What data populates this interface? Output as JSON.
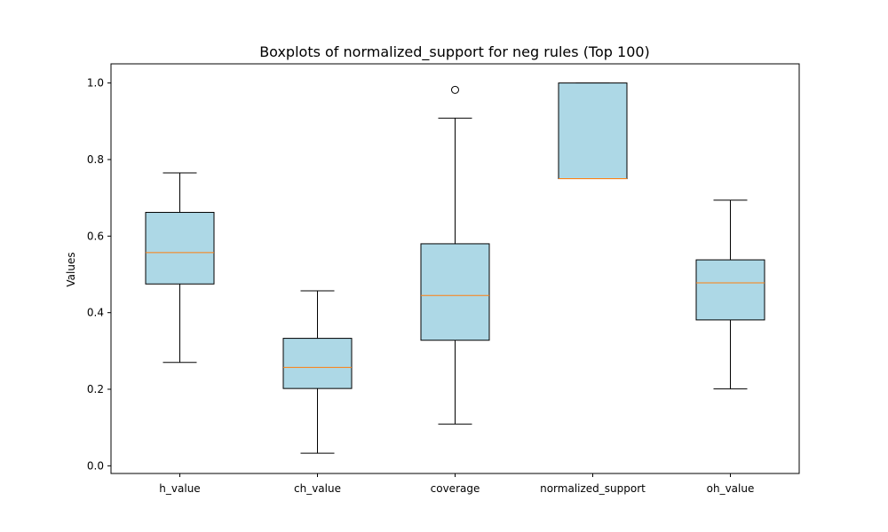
{
  "chart_data": {
    "type": "boxplot",
    "title": "Boxplots of normalized_support for neg rules (Top 100)",
    "xlabel": "",
    "ylabel": "Values",
    "ylim": [
      -0.02,
      1.05
    ],
    "yticks": [
      "0.0",
      "0.2",
      "0.4",
      "0.6",
      "0.8",
      "1.0"
    ],
    "grid": false,
    "colors": {
      "box_fill": "#add8e6",
      "box_edge": "#000000",
      "median": "#ff7f0e"
    },
    "boxes": [
      {
        "category": "h_value",
        "whisker_low": 0.27,
        "q1": 0.475,
        "median": 0.557,
        "q3": 0.662,
        "whisker_high": 0.765,
        "outliers": []
      },
      {
        "category": "ch_value",
        "whisker_low": 0.033,
        "q1": 0.202,
        "median": 0.257,
        "q3": 0.333,
        "whisker_high": 0.457,
        "outliers": []
      },
      {
        "category": "coverage",
        "whisker_low": 0.109,
        "q1": 0.328,
        "median": 0.445,
        "q3": 0.58,
        "whisker_high": 0.908,
        "outliers": [
          0.982
        ]
      },
      {
        "category": "normalized_support",
        "whisker_low": 0.75,
        "q1": 0.75,
        "median": 0.75,
        "q3": 1.0,
        "whisker_high": 1.0,
        "outliers": []
      },
      {
        "category": "oh_value",
        "whisker_low": 0.201,
        "q1": 0.381,
        "median": 0.478,
        "q3": 0.538,
        "whisker_high": 0.694,
        "outliers": []
      }
    ]
  }
}
